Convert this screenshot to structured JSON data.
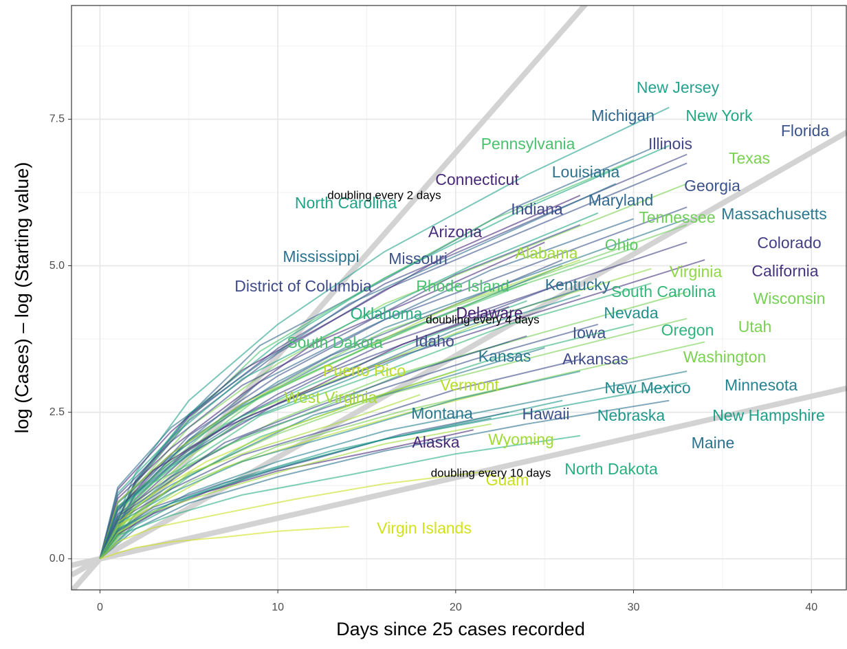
{
  "chart_data": {
    "type": "line",
    "x_label": "Days since 25 cases recorded",
    "y_label": "log (Cases) – log (Starting value)",
    "xlim": [
      -1.6,
      42
    ],
    "ylim": [
      -0.53,
      9.44
    ],
    "xticks": [
      0,
      10,
      20,
      30,
      40
    ],
    "yticks": [
      {
        "value": 0,
        "label": "0.0"
      },
      {
        "value": 2.5,
        "label": "2.5"
      },
      {
        "value": 5,
        "label": "5.0"
      },
      {
        "value": 7.5,
        "label": "7.5"
      }
    ],
    "grid": true,
    "reference_lines": [
      {
        "doubling_days": 2,
        "label": "doubling every 2 days"
      },
      {
        "doubling_days": 4,
        "label": "doubling every 4 days"
      },
      {
        "doubling_days": 10,
        "label": "doubling every 10 days"
      }
    ],
    "series": [
      {
        "name": "New Jersey",
        "color": "#25a18e",
        "x": [
          0,
          2,
          5,
          10,
          16,
          24,
          32
        ],
        "values": [
          0,
          1.46,
          2.7,
          4.0,
          5.24,
          6.55,
          7.7
        ]
      },
      {
        "name": "Michigan",
        "color": "#31688e",
        "x": [
          0,
          2,
          5,
          9,
          16,
          23,
          31
        ],
        "values": [
          0,
          1.33,
          2.45,
          3.64,
          4.76,
          5.95,
          7.0
        ]
      },
      {
        "name": "New York",
        "color": "#22a884",
        "x": [
          0,
          2,
          5,
          10,
          16,
          24,
          32
        ],
        "values": [
          0,
          1.34,
          2.47,
          3.67,
          4.79,
          5.99,
          7.05
        ]
      },
      {
        "name": "Florida",
        "color": "#3b528b",
        "x": [
          0,
          2,
          5,
          10,
          16,
          25,
          33
        ],
        "values": [
          0,
          1.28,
          2.36,
          3.51,
          4.59,
          5.74,
          6.75
        ]
      },
      {
        "name": "Pennsylvania",
        "color": "#4ac16d",
        "x": [
          0,
          2,
          5,
          9,
          15,
          22,
          30
        ],
        "values": [
          0,
          1.29,
          2.38,
          3.54,
          4.62,
          5.78,
          6.8
        ]
      },
      {
        "name": "Illinois",
        "color": "#414487",
        "x": [
          0,
          2,
          5,
          10,
          16,
          25,
          33
        ],
        "values": [
          0,
          1.31,
          2.42,
          3.59,
          4.69,
          5.87,
          6.9
        ]
      },
      {
        "name": "Texas",
        "color": "#7ad151",
        "x": [
          0,
          2,
          5,
          10,
          16,
          25,
          33
        ],
        "values": [
          0,
          1.22,
          2.24,
          3.33,
          4.35,
          5.44,
          6.4
        ]
      },
      {
        "name": "Connecticut",
        "color": "#482878",
        "x": [
          0,
          1,
          4,
          8,
          14,
          20,
          27
        ],
        "values": [
          0,
          1.18,
          2.17,
          3.22,
          4.22,
          5.27,
          6.2
        ]
      },
      {
        "name": "Louisiana",
        "color": "#2c728e",
        "x": [
          0,
          1,
          4,
          9,
          14,
          22,
          29
        ],
        "values": [
          0,
          1.22,
          2.24,
          3.33,
          4.35,
          5.44,
          6.4
        ]
      },
      {
        "name": "Georgia",
        "color": "#3b528b",
        "x": [
          0,
          2,
          5,
          10,
          16,
          25,
          33
        ],
        "values": [
          0,
          1.14,
          2.1,
          3.12,
          4.08,
          5.1,
          6.0
        ]
      },
      {
        "name": "North Carolina",
        "color": "#20a386",
        "x": [
          0,
          1,
          4,
          8,
          14,
          21,
          28
        ],
        "values": [
          0,
          1.12,
          2.07,
          3.07,
          4.01,
          5.02,
          5.9
        ]
      },
      {
        "name": "Indiana",
        "color": "#3e4a89",
        "x": [
          0,
          1,
          4,
          8,
          14,
          20,
          27
        ],
        "values": [
          0,
          1.08,
          2.0,
          2.96,
          3.88,
          4.85,
          5.7
        ]
      },
      {
        "name": "Maryland",
        "color": "#31688e",
        "x": [
          0,
          2,
          5,
          9,
          15,
          22,
          30
        ],
        "values": [
          0,
          1.1,
          2.03,
          3.02,
          3.94,
          4.93,
          5.8
        ]
      },
      {
        "name": "Tennessee",
        "color": "#6ece58",
        "x": [
          0,
          2,
          5,
          10,
          16,
          25,
          33
        ],
        "values": [
          0,
          1.08,
          2.0,
          2.96,
          3.88,
          4.85,
          5.7
        ]
      },
      {
        "name": "Massachusetts",
        "color": "#2a788e",
        "x": [
          0,
          2,
          5,
          10,
          16,
          25,
          33
        ],
        "values": [
          0,
          1.1,
          2.03,
          3.02,
          3.94,
          4.93,
          5.8
        ]
      },
      {
        "name": "Arizona",
        "color": "#472d7b",
        "x": [
          0,
          1,
          4,
          8,
          12,
          19,
          25
        ],
        "values": [
          0,
          1.03,
          1.89,
          2.81,
          3.67,
          4.59,
          5.4
        ]
      },
      {
        "name": "Colorado",
        "color": "#433e85",
        "x": [
          0,
          2,
          5,
          10,
          16,
          25,
          33
        ],
        "values": [
          0,
          1.03,
          1.89,
          2.81,
          3.67,
          4.59,
          5.4
        ]
      },
      {
        "name": "Mississippi",
        "color": "#2c728e",
        "x": [
          0,
          1,
          4,
          8,
          13,
          20,
          26
        ],
        "values": [
          0,
          0.95,
          1.75,
          2.6,
          3.4,
          4.25,
          5.0
        ]
      },
      {
        "name": "Missouri",
        "color": "#3b528b",
        "x": [
          0,
          1,
          4,
          8,
          13,
          20,
          26
        ],
        "values": [
          0,
          0.97,
          1.79,
          2.65,
          3.47,
          4.34,
          5.1
        ]
      },
      {
        "name": "Alabama",
        "color": "#a0da39",
        "x": [
          0,
          1,
          4,
          8,
          14,
          20,
          27
        ],
        "values": [
          0,
          0.97,
          1.79,
          2.65,
          3.47,
          4.34,
          5.1
        ]
      },
      {
        "name": "Ohio",
        "color": "#5ec962",
        "x": [
          0,
          2,
          5,
          9,
          15,
          22,
          30
        ],
        "values": [
          0,
          1.01,
          1.86,
          2.76,
          3.6,
          4.5,
          5.3
        ]
      },
      {
        "name": "California",
        "color": "#46337e",
        "x": [
          0,
          2,
          5,
          10,
          17,
          26,
          34
        ],
        "values": [
          0,
          0.97,
          1.79,
          2.65,
          3.47,
          4.34,
          5.1
        ]
      },
      {
        "name": "Virginia",
        "color": "#8fd744",
        "x": [
          0,
          2,
          5,
          9,
          16,
          23,
          31
        ],
        "values": [
          0,
          0.94,
          1.73,
          2.57,
          3.37,
          4.21,
          4.95
        ]
      },
      {
        "name": "District of Columbia",
        "color": "#3e4a89",
        "x": [
          0,
          1,
          4,
          8,
          13,
          20,
          26
        ],
        "values": [
          0,
          0.89,
          1.65,
          2.44,
          3.2,
          4.0,
          4.7
        ]
      },
      {
        "name": "Rhode Island",
        "color": "#4ac16d",
        "x": [
          0,
          1,
          4,
          7,
          12,
          18,
          24
        ],
        "values": [
          0,
          0.89,
          1.65,
          2.44,
          3.2,
          4.0,
          4.7
        ]
      },
      {
        "name": "Kentucky",
        "color": "#2c728e",
        "x": [
          0,
          1,
          4,
          8,
          14,
          20,
          27
        ],
        "values": [
          0,
          0.87,
          1.61,
          2.39,
          3.13,
          3.91,
          4.6
        ]
      },
      {
        "name": "South Carolina",
        "color": "#35b779",
        "x": [
          0,
          2,
          5,
          9,
          16,
          23,
          31
        ],
        "values": [
          0,
          0.89,
          1.65,
          2.44,
          3.2,
          4.0,
          4.7
        ]
      },
      {
        "name": "Wisconsin",
        "color": "#75d054",
        "x": [
          0,
          2,
          5,
          10,
          16,
          25,
          33
        ],
        "values": [
          0,
          0.86,
          1.59,
          2.37,
          3.09,
          3.87,
          4.55
        ]
      },
      {
        "name": "Oklahoma",
        "color": "#29af7f",
        "x": [
          0,
          1,
          4,
          7,
          12,
          18,
          24
        ],
        "values": [
          0,
          0.84,
          1.54,
          2.29,
          2.99,
          3.74,
          4.4
        ]
      },
      {
        "name": "Delaware",
        "color": "#482173",
        "x": [
          0,
          1,
          3,
          7,
          12,
          17,
          23
        ],
        "values": [
          0,
          0.82,
          1.51,
          2.24,
          2.92,
          3.66,
          4.3
        ]
      },
      {
        "name": "Nevada",
        "color": "#21908d",
        "x": [
          0,
          1,
          4,
          8,
          14,
          20,
          27
        ],
        "values": [
          0,
          0.86,
          1.58,
          2.34,
          3.06,
          3.83,
          4.5
        ]
      },
      {
        "name": "Iowa",
        "color": "#3b528b",
        "x": [
          0,
          1,
          4,
          8,
          14,
          21,
          28
        ],
        "values": [
          0,
          0.76,
          1.4,
          2.08,
          2.72,
          3.4,
          4.0
        ]
      },
      {
        "name": "Oregon",
        "color": "#2fb47c",
        "x": [
          0,
          2,
          5,
          9,
          15,
          22,
          30
        ],
        "values": [
          0,
          0.76,
          1.4,
          2.08,
          2.72,
          3.4,
          4.0
        ]
      },
      {
        "name": "Utah",
        "color": "#7ad151",
        "x": [
          0,
          2,
          5,
          10,
          16,
          25,
          33
        ],
        "values": [
          0,
          0.78,
          1.44,
          2.13,
          2.79,
          3.49,
          4.1
        ]
      },
      {
        "name": "South Dakota",
        "color": "#4ac16d",
        "x": [
          0,
          1,
          3,
          7,
          12,
          17,
          23
        ],
        "values": [
          0,
          0.7,
          1.3,
          1.92,
          2.52,
          3.15,
          3.7
        ]
      },
      {
        "name": "Idaho",
        "color": "#3e4a89",
        "x": [
          0,
          1,
          4,
          7,
          12,
          18,
          24
        ],
        "values": [
          0,
          0.72,
          1.33,
          1.98,
          2.58,
          3.23,
          3.8
        ]
      },
      {
        "name": "Kansas",
        "color": "#2a788e",
        "x": [
          0,
          1,
          4,
          8,
          12,
          19,
          25
        ],
        "values": [
          0,
          0.68,
          1.26,
          1.87,
          2.45,
          3.06,
          3.6
        ]
      },
      {
        "name": "Arkansas",
        "color": "#3e4a89",
        "x": [
          0,
          1,
          4,
          8,
          14,
          20,
          27
        ],
        "values": [
          0,
          0.65,
          1.19,
          1.77,
          2.31,
          2.89,
          3.4
        ]
      },
      {
        "name": "Washington",
        "color": "#7ad151",
        "x": [
          0,
          2,
          5,
          10,
          17,
          26,
          34
        ],
        "values": [
          0,
          0.7,
          1.3,
          1.92,
          2.52,
          3.15,
          3.7
        ]
      },
      {
        "name": "Puerto Rico",
        "color": "#c2df23",
        "x": [
          0,
          1,
          3,
          6,
          10,
          15,
          20
        ],
        "values": [
          0,
          0.61,
          1.12,
          1.66,
          2.18,
          2.72,
          3.2
        ]
      },
      {
        "name": "Vermont",
        "color": "#b5de2b",
        "x": [
          0,
          1,
          4,
          7,
          12,
          18,
          24
        ],
        "values": [
          0,
          0.57,
          1.05,
          1.56,
          2.04,
          2.55,
          3.0
        ]
      },
      {
        "name": "New Mexico",
        "color": "#23898e",
        "x": [
          0,
          1,
          4,
          8,
          14,
          20,
          27
        ],
        "values": [
          0,
          0.61,
          1.12,
          1.66,
          2.18,
          2.72,
          3.2
        ]
      },
      {
        "name": "Minnesota",
        "color": "#26828e",
        "x": [
          0,
          2,
          5,
          10,
          16,
          25,
          33
        ],
        "values": [
          0,
          0.61,
          1.12,
          1.66,
          2.18,
          2.72,
          3.2
        ]
      },
      {
        "name": "West Virginia",
        "color": "#a8db34",
        "x": [
          0,
          1,
          3,
          5,
          9,
          14,
          18
        ],
        "values": [
          0,
          0.53,
          0.98,
          1.46,
          1.9,
          2.38,
          2.8
        ]
      },
      {
        "name": "Montana",
        "color": "#2a788e",
        "x": [
          0,
          1,
          3,
          7,
          11,
          16,
          22
        ],
        "values": [
          0,
          0.46,
          0.84,
          1.25,
          1.63,
          2.04,
          2.4
        ]
      },
      {
        "name": "Hawaii",
        "color": "#3b528b",
        "x": [
          0,
          1,
          3,
          7,
          12,
          17,
          23
        ],
        "values": [
          0,
          0.48,
          0.88,
          1.3,
          1.7,
          2.13,
          2.5
        ]
      },
      {
        "name": "Nebraska",
        "color": "#1f988b",
        "x": [
          0,
          1,
          4,
          8,
          13,
          20,
          26
        ],
        "values": [
          0,
          0.51,
          0.95,
          1.4,
          1.84,
          2.3,
          2.7
        ]
      },
      {
        "name": "New Hampshire",
        "color": "#1f9e89",
        "x": [
          0,
          2,
          5,
          10,
          16,
          25,
          33
        ],
        "values": [
          0,
          0.57,
          1.05,
          1.56,
          2.04,
          2.55,
          3.0
        ]
      },
      {
        "name": "Alaska",
        "color": "#482878",
        "x": [
          0,
          1,
          3,
          6,
          10,
          16,
          21
        ],
        "values": [
          0,
          0.42,
          0.77,
          1.14,
          1.5,
          1.87,
          2.2
        ]
      },
      {
        "name": "Wyoming",
        "color": "#a0da39",
        "x": [
          0,
          1,
          3,
          7,
          11,
          16,
          22
        ],
        "values": [
          0,
          0.44,
          0.81,
          1.2,
          1.56,
          1.96,
          2.3
        ]
      },
      {
        "name": "Maine",
        "color": "#2c728e",
        "x": [
          0,
          2,
          5,
          10,
          16,
          24,
          32
        ],
        "values": [
          0,
          0.51,
          0.95,
          1.4,
          1.84,
          2.3,
          2.7
        ]
      },
      {
        "name": "North Dakota",
        "color": "#29af7f",
        "x": [
          0,
          1,
          4,
          8,
          14,
          20,
          27
        ],
        "values": [
          0,
          0.4,
          0.74,
          1.09,
          1.43,
          1.79,
          2.1
        ]
      },
      {
        "name": "Guam",
        "color": "#c8e020",
        "x": [
          0,
          1,
          3,
          7,
          11,
          16,
          22
        ],
        "values": [
          0,
          0.29,
          0.53,
          0.78,
          1.02,
          1.28,
          1.5
        ]
      },
      {
        "name": "Virgin Islands",
        "color": "#d2e21b",
        "x": [
          0,
          1,
          2,
          4,
          7,
          10,
          14
        ],
        "values": [
          0,
          0.1,
          0.19,
          0.29,
          0.37,
          0.47,
          0.55
        ]
      }
    ]
  }
}
